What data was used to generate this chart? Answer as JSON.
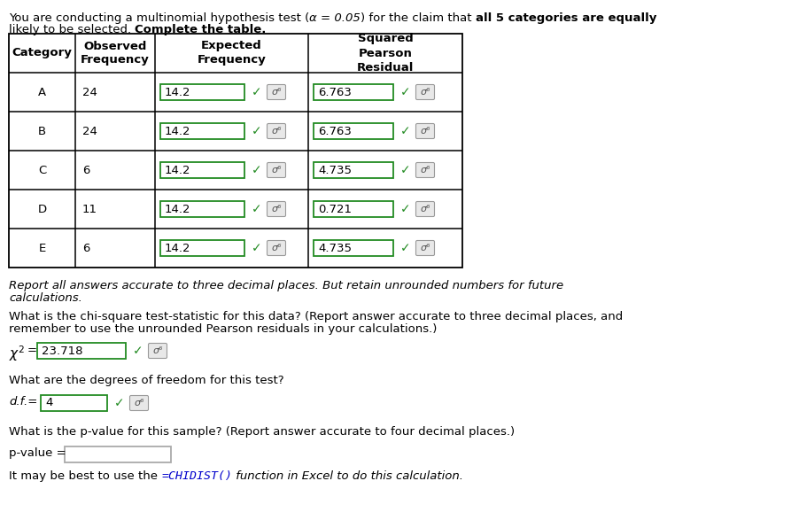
{
  "categories": [
    "A",
    "B",
    "C",
    "D",
    "E"
  ],
  "observed": [
    "24",
    "24",
    "6",
    "11",
    "6"
  ],
  "expected": [
    "14.2",
    "14.2",
    "14.2",
    "14.2",
    "14.2"
  ],
  "pearson": [
    "6.763",
    "6.763",
    "4.735",
    "0.721",
    "4.735"
  ],
  "chi_sq_value": "23.718",
  "dof_value": "4",
  "bg_color": "#ffffff",
  "green_border": "#228B22",
  "gray_border": "#aaaaaa",
  "check_color": "#228B22",
  "gray_color": "#888888",
  "blue_color": "#0000cc",
  "black": "#000000",
  "fs": 9.5
}
